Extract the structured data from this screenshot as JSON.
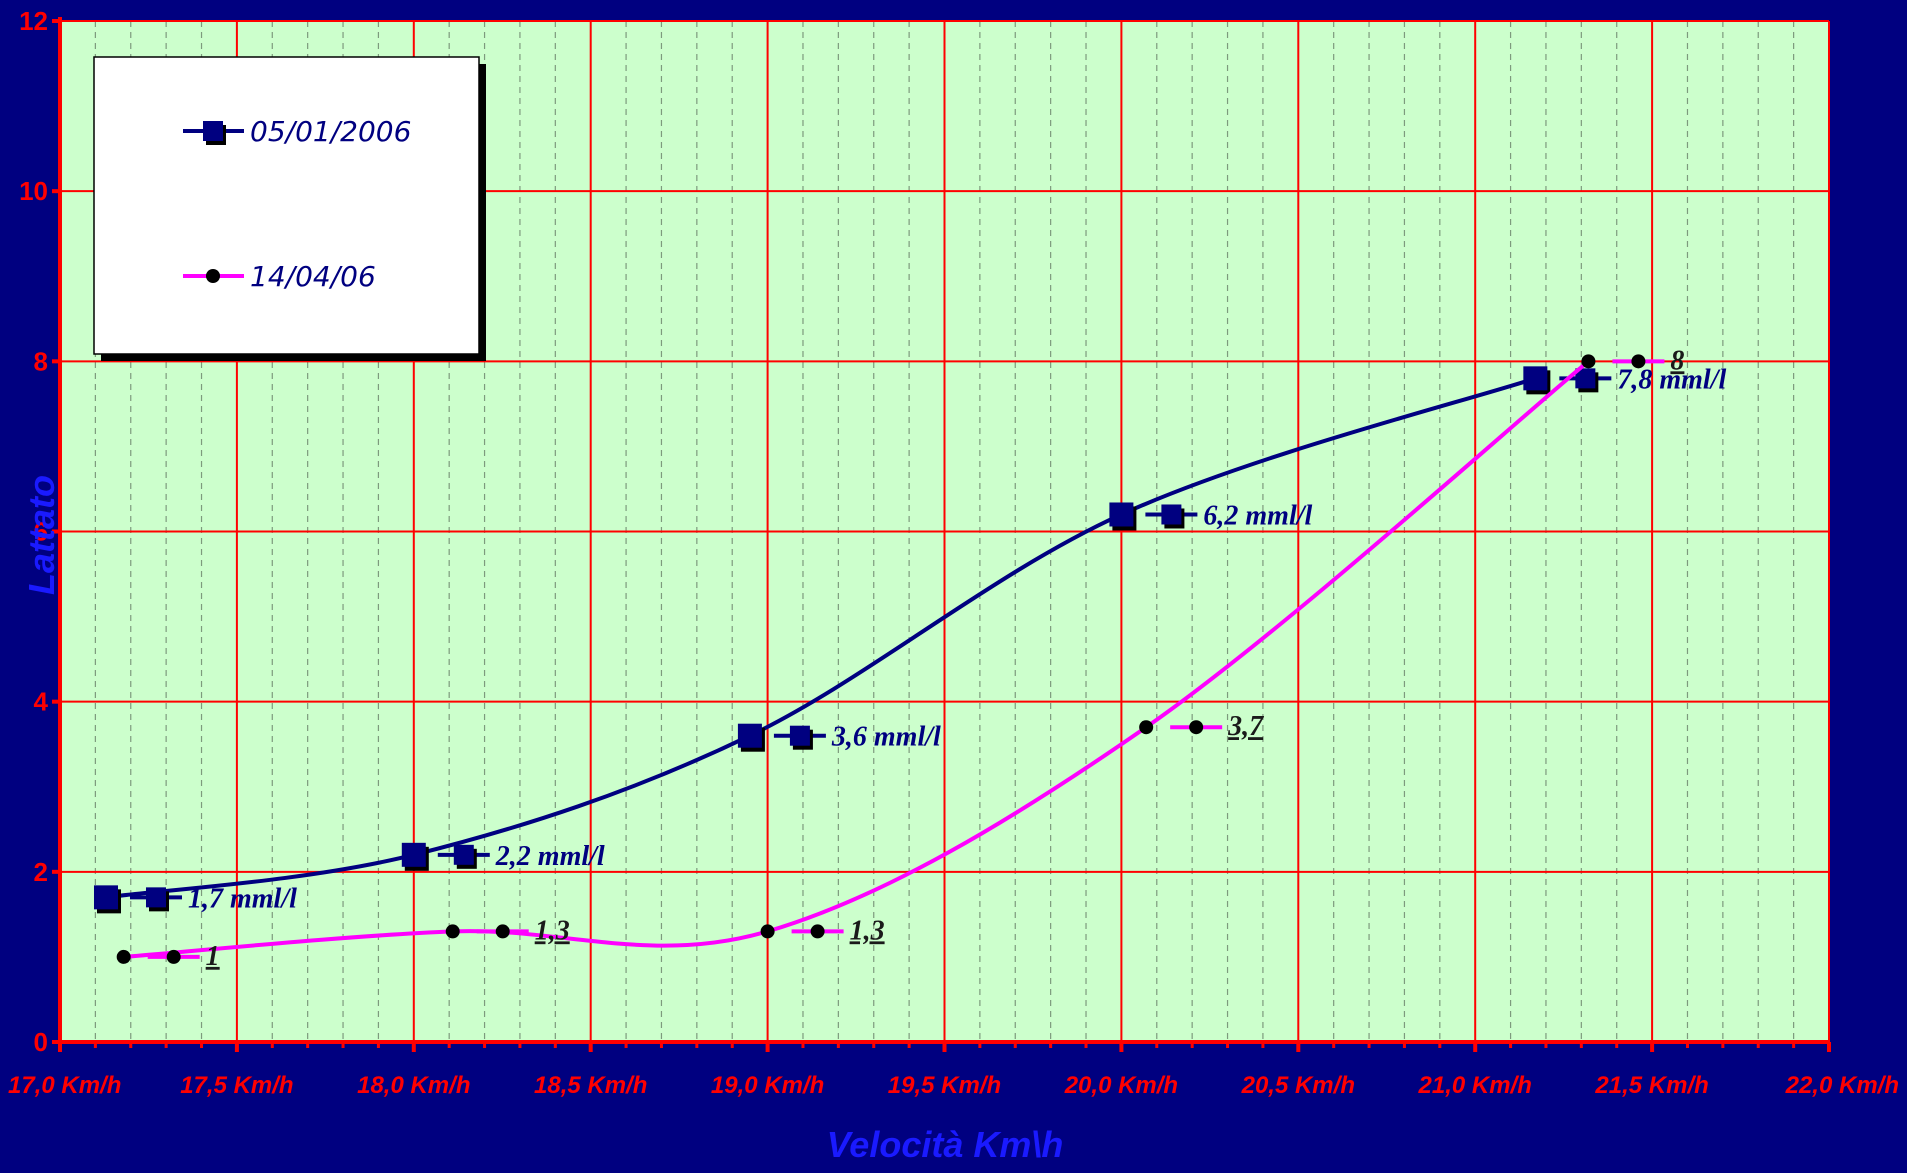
{
  "chart_data": {
    "type": "line",
    "xlabel": "Velocità Km\\h",
    "ylabel": "Lattato",
    "xlim": [
      17.0,
      22.0
    ],
    "ylim": [
      0,
      12
    ],
    "x_ticks": [
      "17,0 Km/h",
      "17,5 Km/h",
      "18,0 Km/h",
      "18,5 Km/h",
      "19,0 Km/h",
      "19,5 Km/h",
      "20,0 Km/h",
      "20,5 Km/h",
      "21,0 Km/h",
      "21,5 Km/h",
      "22,0 Km/h"
    ],
    "x_tick_values": [
      17.0,
      17.5,
      18.0,
      18.5,
      19.0,
      19.5,
      20.0,
      20.5,
      21.0,
      21.5,
      22.0
    ],
    "y_ticks": [
      "0",
      "2",
      "4",
      "6",
      "8",
      "10",
      "12"
    ],
    "y_tick_values": [
      0,
      2,
      4,
      6,
      8,
      10,
      12
    ],
    "grid": true,
    "legend_position": "top-left",
    "series": [
      {
        "name": "05/01/2006",
        "color": "#000080",
        "marker": "square",
        "x": [
          17.13,
          18.0,
          18.95,
          20.0,
          21.17
        ],
        "y": [
          1.7,
          2.2,
          3.6,
          6.2,
          7.8
        ],
        "labels": [
          "1,7 mml/l",
          "2,2 mml/l",
          "3,6 mml/l",
          "6,2 mml/l",
          "7,8 mml/l"
        ],
        "underline_labels": false,
        "label_color": "#000080"
      },
      {
        "name": "14/04/06",
        "color": "#ff00ff",
        "marker": "circle",
        "x": [
          17.18,
          18.11,
          19.0,
          20.07,
          21.32
        ],
        "y": [
          1.0,
          1.3,
          1.3,
          3.7,
          8.0
        ],
        "labels": [
          "1",
          "1,3",
          "1,3",
          "3,7",
          "8"
        ],
        "underline_labels": true,
        "label_color": "#1a1a1a"
      }
    ]
  }
}
